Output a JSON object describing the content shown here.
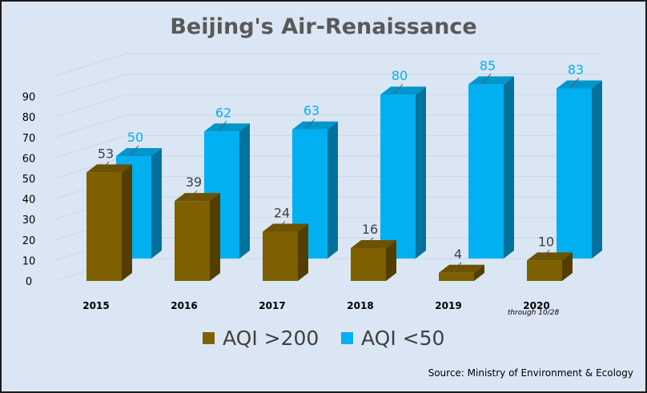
{
  "chart_data": {
    "type": "bar",
    "title": "Beijing's Air-Renaissance",
    "categories": [
      "2015",
      "2016",
      "2017",
      "2018",
      "2019",
      "2020"
    ],
    "category_note": "through 10/28",
    "series": [
      {
        "name": "AQI >200",
        "values": [
          53,
          39,
          24,
          16,
          4,
          10
        ],
        "color": "#7f6000"
      },
      {
        "name": "AQI <50",
        "values": [
          50,
          62,
          63,
          80,
          85,
          83
        ],
        "color": "#00b0f0"
      }
    ],
    "y_ticks": [
      "0",
      "10",
      "20",
      "30",
      "40",
      "50",
      "60",
      "70",
      "80",
      "90"
    ],
    "ylim": [
      0,
      100
    ],
    "grid": true,
    "legend_position": "bottom",
    "source": "Source: Ministry of Environment & Ecology"
  }
}
